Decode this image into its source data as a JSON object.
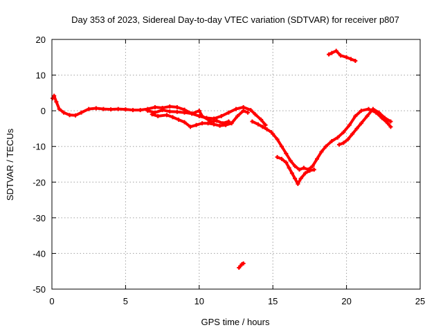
{
  "chart_data": {
    "type": "scatter",
    "title": "Day 353 of 2023, Sidereal Day-to-day VTEC variation (SDTVAR) for receiver p807",
    "xlabel": "GPS time / hours",
    "ylabel": "SDTVAR / TECUs",
    "xlim": [
      0,
      25
    ],
    "ylim": [
      -50,
      20
    ],
    "xticks": [
      0,
      5,
      10,
      15,
      20,
      25
    ],
    "yticks": [
      -50,
      -40,
      -30,
      -20,
      -10,
      0,
      10,
      20
    ],
    "grid": true,
    "marker_color": "#ff0000",
    "series": [
      {
        "name": "main-trace-a",
        "points": [
          [
            0.05,
            3.5
          ],
          [
            0.15,
            4.2
          ],
          [
            0.3,
            2.5
          ],
          [
            0.5,
            0.5
          ],
          [
            0.8,
            -0.5
          ],
          [
            1.2,
            -1.2
          ],
          [
            1.6,
            -1.3
          ],
          [
            2.0,
            -0.5
          ],
          [
            2.5,
            0.5
          ],
          [
            3.0,
            0.7
          ],
          [
            3.5,
            0.5
          ],
          [
            4.0,
            0.4
          ],
          [
            4.5,
            0.5
          ],
          [
            5.0,
            0.4
          ],
          [
            5.5,
            0.2
          ],
          [
            6.0,
            0.2
          ],
          [
            6.5,
            0.5
          ],
          [
            7.0,
            1.0
          ],
          [
            7.5,
            0.8
          ],
          [
            8.0,
            1.2
          ],
          [
            8.5,
            1.0
          ],
          [
            9.0,
            0.3
          ],
          [
            9.5,
            -0.8
          ],
          [
            10.0,
            -1.5
          ],
          [
            10.5,
            -2.0
          ],
          [
            11.0,
            -2.2
          ],
          [
            11.5,
            -1.5
          ],
          [
            12.0,
            -0.5
          ],
          [
            12.5,
            0.5
          ],
          [
            13.0,
            1.0
          ],
          [
            13.5,
            0.2
          ],
          [
            13.8,
            -1.0
          ],
          [
            14.2,
            -2.5
          ],
          [
            14.5,
            -4.0
          ]
        ]
      },
      {
        "name": "main-trace-b",
        "points": [
          [
            6.8,
            -1.0
          ],
          [
            7.2,
            -1.5
          ],
          [
            7.8,
            -1.2
          ],
          [
            8.2,
            -1.8
          ],
          [
            8.6,
            -2.5
          ],
          [
            9.0,
            -3.2
          ],
          [
            9.4,
            -4.5
          ],
          [
            9.8,
            -4.0
          ],
          [
            10.2,
            -3.5
          ],
          [
            10.6,
            -3.5
          ],
          [
            11.0,
            -3.8
          ],
          [
            11.4,
            -4.2
          ],
          [
            11.8,
            -4.0
          ],
          [
            12.2,
            -3.5
          ],
          [
            12.6,
            -1.5
          ],
          [
            13.0,
            0.0
          ],
          [
            13.3,
            -0.5
          ]
        ]
      },
      {
        "name": "main-trace-c",
        "points": [
          [
            6.5,
            0.0
          ],
          [
            7.0,
            -0.5
          ],
          [
            7.5,
            0.2
          ],
          [
            8.0,
            -0.2
          ],
          [
            8.5,
            -0.3
          ],
          [
            9.0,
            -0.5
          ],
          [
            9.5,
            -0.8
          ],
          [
            10.0,
            0.0
          ],
          [
            10.2,
            -1.5
          ],
          [
            10.8,
            -3.0
          ],
          [
            11.2,
            -2.8
          ],
          [
            11.6,
            -3.5
          ],
          [
            12.0,
            -3.0
          ]
        ]
      },
      {
        "name": "main-trace-d",
        "points": [
          [
            13.6,
            -3.0
          ],
          [
            14.0,
            -3.8
          ],
          [
            14.3,
            -4.5
          ],
          [
            14.6,
            -5.2
          ],
          [
            14.9,
            -6.0
          ]
        ]
      },
      {
        "name": "dip-trace",
        "points": [
          [
            15.0,
            -6.5
          ],
          [
            15.3,
            -8.0
          ],
          [
            15.6,
            -10.0
          ],
          [
            15.9,
            -12.0
          ],
          [
            16.2,
            -14.0
          ],
          [
            16.5,
            -15.5
          ],
          [
            16.8,
            -16.5
          ],
          [
            17.1,
            -16.0
          ],
          [
            17.4,
            -16.5
          ],
          [
            17.7,
            -15.5
          ],
          [
            18.0,
            -13.5
          ],
          [
            18.3,
            -11.5
          ],
          [
            18.6,
            -10.0
          ],
          [
            19.0,
            -8.5
          ],
          [
            19.4,
            -7.5
          ],
          [
            19.8,
            -6.0
          ],
          [
            20.2,
            -4.0
          ],
          [
            20.6,
            -1.5
          ],
          [
            21.0,
            0.0
          ],
          [
            21.5,
            0.5
          ],
          [
            22.0,
            -0.5
          ],
          [
            22.4,
            -2.0
          ],
          [
            22.8,
            -3.5
          ],
          [
            23.0,
            -4.5
          ]
        ]
      },
      {
        "name": "dip-trace-lower",
        "points": [
          [
            15.3,
            -13.0
          ],
          [
            15.6,
            -13.5
          ],
          [
            15.9,
            -14.5
          ],
          [
            16.1,
            -16.0
          ],
          [
            16.3,
            -17.5
          ],
          [
            16.5,
            -19.0
          ],
          [
            16.7,
            -20.5
          ],
          [
            16.9,
            -19.0
          ],
          [
            17.2,
            -17.5
          ],
          [
            17.5,
            -16.8
          ],
          [
            17.8,
            -16.5
          ]
        ]
      },
      {
        "name": "rebound-trace",
        "points": [
          [
            19.5,
            -9.5
          ],
          [
            19.8,
            -9.0
          ],
          [
            20.1,
            -8.0
          ],
          [
            20.4,
            -6.5
          ],
          [
            20.7,
            -5.0
          ],
          [
            21.0,
            -3.5
          ],
          [
            21.4,
            -1.5
          ],
          [
            21.8,
            0.5
          ],
          [
            22.2,
            -0.5
          ],
          [
            22.6,
            -2.0
          ],
          [
            23.0,
            -3.0
          ]
        ]
      },
      {
        "name": "high-arc",
        "points": [
          [
            18.8,
            15.8
          ],
          [
            19.0,
            16.2
          ],
          [
            19.3,
            16.8
          ],
          [
            19.6,
            15.5
          ],
          [
            20.0,
            15.0
          ],
          [
            20.3,
            14.5
          ],
          [
            20.6,
            14.0
          ]
        ]
      },
      {
        "name": "low-outlier",
        "points": [
          [
            12.7,
            -44.0
          ],
          [
            12.8,
            -43.5
          ],
          [
            12.9,
            -43.0
          ],
          [
            13.0,
            -42.8
          ]
        ]
      }
    ]
  }
}
